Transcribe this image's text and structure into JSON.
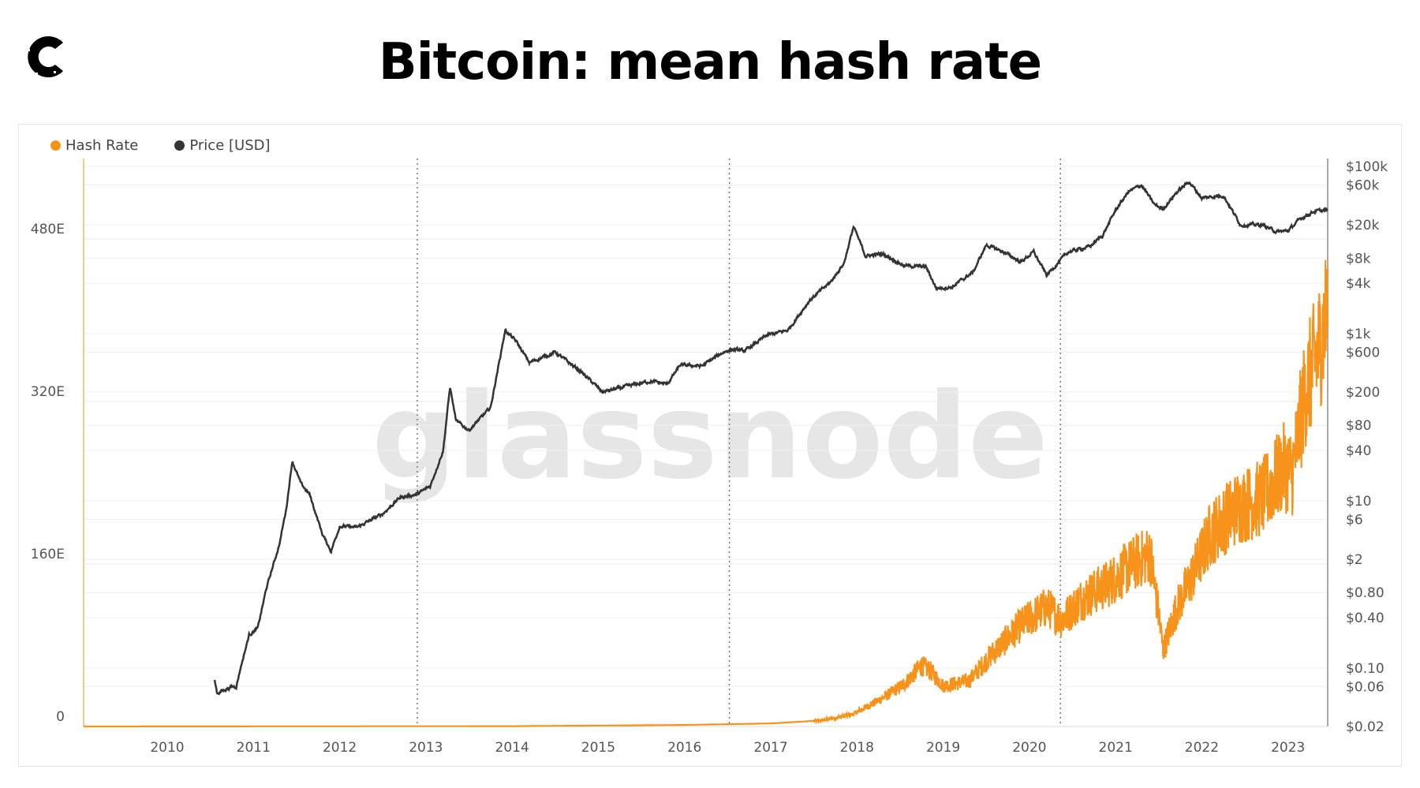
{
  "header": {
    "title": "Bitcoin: mean hash rate",
    "logo": "C"
  },
  "watermark": "glassnode",
  "chart_data": {
    "type": "line",
    "title": "Bitcoin: mean hash rate",
    "legend": [
      {
        "name": "Hash Rate",
        "color": "#f7931a"
      },
      {
        "name": "Price [USD]",
        "color": "#333333"
      }
    ],
    "legend_position": "top-left",
    "x_range": [
      2009.03,
      2023.46
    ],
    "x_ticks": [
      "2010",
      "2011",
      "2012",
      "2013",
      "2014",
      "2015",
      "2016",
      "2017",
      "2018",
      "2019",
      "2020",
      "2021",
      "2022",
      "2023"
    ],
    "y_left": {
      "label": "Hash Rate",
      "ticks": [
        "0",
        "160E",
        "320E",
        "480E"
      ],
      "tick_values": [
        0,
        160,
        320,
        480
      ],
      "range": [
        0,
        560
      ],
      "scale": "linear"
    },
    "y_right": {
      "label": "Price [USD]",
      "scale": "log",
      "range": [
        0.02,
        100000
      ],
      "ticks": [
        "$0.02",
        "$0.06",
        "$0.10",
        "$0.40",
        "$0.80",
        "$2",
        "$6",
        "$10",
        "$40",
        "$80",
        "$200",
        "$600",
        "$1k",
        "$4k",
        "$8k",
        "$20k",
        "$60k",
        "$100k"
      ],
      "tick_values": [
        0.02,
        0.06,
        0.1,
        0.4,
        0.8,
        2,
        6,
        10,
        40,
        80,
        200,
        600,
        1000,
        4000,
        8000,
        20000,
        60000,
        100000
      ]
    },
    "halvings": [
      2012.9,
      2016.52,
      2020.36
    ],
    "series": [
      {
        "name": "Hash Rate",
        "unit": "EH/s",
        "color": "#f7931a",
        "points": [
          [
            2009.03,
            0
          ],
          [
            2014,
            0.3
          ],
          [
            2016,
            1.5
          ],
          [
            2017,
            3
          ],
          [
            2017.6,
            6
          ],
          [
            2017.95,
            12
          ],
          [
            2018.3,
            28
          ],
          [
            2018.55,
            42
          ],
          [
            2018.75,
            60
          ],
          [
            2018.85,
            55
          ],
          [
            2019.0,
            40
          ],
          [
            2019.3,
            45
          ],
          [
            2019.55,
            70
          ],
          [
            2019.9,
            100
          ],
          [
            2020.2,
            118
          ],
          [
            2020.38,
            105
          ],
          [
            2020.6,
            125
          ],
          [
            2020.9,
            140
          ],
          [
            2021.2,
            160
          ],
          [
            2021.4,
            170
          ],
          [
            2021.5,
            110
          ],
          [
            2021.55,
            75
          ],
          [
            2021.7,
            115
          ],
          [
            2021.9,
            150
          ],
          [
            2022.1,
            190
          ],
          [
            2022.4,
            215
          ],
          [
            2022.7,
            225
          ],
          [
            2022.95,
            255
          ],
          [
            2023.05,
            250
          ],
          [
            2023.2,
            330
          ],
          [
            2023.35,
            370
          ],
          [
            2023.46,
            410
          ]
        ]
      },
      {
        "name": "Price [USD]",
        "color": "#333333",
        "points": [
          [
            2010.55,
            0.07
          ],
          [
            2010.58,
            0.05
          ],
          [
            2010.75,
            0.06
          ],
          [
            2010.8,
            0.06
          ],
          [
            2010.85,
            0.1
          ],
          [
            2010.95,
            0.25
          ],
          [
            2011.05,
            0.3
          ],
          [
            2011.15,
            0.9
          ],
          [
            2011.3,
            3
          ],
          [
            2011.38,
            8
          ],
          [
            2011.45,
            30
          ],
          [
            2011.55,
            16
          ],
          [
            2011.65,
            12
          ],
          [
            2011.8,
            4
          ],
          [
            2011.9,
            2.5
          ],
          [
            2012.0,
            5
          ],
          [
            2012.2,
            4.8
          ],
          [
            2012.5,
            7
          ],
          [
            2012.7,
            11
          ],
          [
            2012.9,
            12
          ],
          [
            2013.05,
            15
          ],
          [
            2013.2,
            40
          ],
          [
            2013.28,
            230
          ],
          [
            2013.35,
            90
          ],
          [
            2013.5,
            70
          ],
          [
            2013.75,
            130
          ],
          [
            2013.92,
            1100
          ],
          [
            2014.05,
            800
          ],
          [
            2014.2,
            450
          ],
          [
            2014.5,
            600
          ],
          [
            2014.8,
            350
          ],
          [
            2015.05,
            200
          ],
          [
            2015.3,
            230
          ],
          [
            2015.6,
            270
          ],
          [
            2015.8,
            250
          ],
          [
            2015.95,
            420
          ],
          [
            2016.2,
            410
          ],
          [
            2016.45,
            600
          ],
          [
            2016.55,
            650
          ],
          [
            2016.7,
            620
          ],
          [
            2016.95,
            950
          ],
          [
            2017.2,
            1100
          ],
          [
            2017.45,
            2500
          ],
          [
            2017.7,
            4200
          ],
          [
            2017.85,
            7000
          ],
          [
            2017.96,
            19000
          ],
          [
            2018.1,
            8500
          ],
          [
            2018.3,
            9000
          ],
          [
            2018.55,
            6500
          ],
          [
            2018.8,
            6300
          ],
          [
            2018.92,
            3500
          ],
          [
            2019.1,
            3600
          ],
          [
            2019.35,
            5500
          ],
          [
            2019.5,
            11500
          ],
          [
            2019.7,
            9500
          ],
          [
            2019.9,
            7200
          ],
          [
            2020.05,
            9500
          ],
          [
            2020.2,
            5000
          ],
          [
            2020.45,
            9500
          ],
          [
            2020.7,
            11000
          ],
          [
            2020.85,
            15000
          ],
          [
            2021.0,
            30000
          ],
          [
            2021.15,
            50000
          ],
          [
            2021.3,
            60000
          ],
          [
            2021.45,
            35000
          ],
          [
            2021.55,
            31000
          ],
          [
            2021.7,
            48000
          ],
          [
            2021.85,
            66000
          ],
          [
            2022.0,
            42000
          ],
          [
            2022.25,
            45000
          ],
          [
            2022.45,
            20000
          ],
          [
            2022.7,
            20000
          ],
          [
            2022.87,
            16500
          ],
          [
            2023.0,
            17000
          ],
          [
            2023.15,
            24000
          ],
          [
            2023.3,
            29000
          ],
          [
            2023.46,
            30000
          ]
        ]
      }
    ]
  }
}
